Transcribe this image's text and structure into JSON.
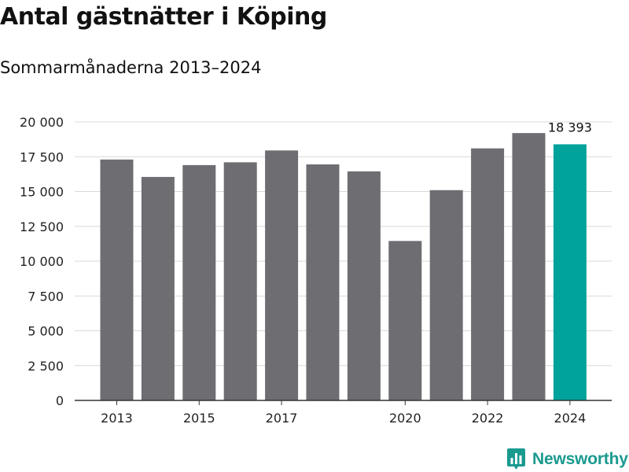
{
  "header": {
    "title": "Antal gästnätter i Köping",
    "subtitle": "Sommarmånaderna 2013–2024"
  },
  "brand": {
    "name": "Newsworthy",
    "logo_icon": "bar-chart-badge-icon",
    "color": "#1a9a8f"
  },
  "colors": {
    "bar": "#6d6d72",
    "highlight": "#00a39b",
    "grid": "#d9d9d9",
    "axis": "#333333"
  },
  "chart_data": {
    "type": "bar",
    "title": "Antal gästnätter i Köping",
    "subtitle": "Sommarmånaderna 2013–2024",
    "categories": [
      "2013",
      "2014",
      "2015",
      "2016",
      "2017",
      "2018",
      "2019",
      "2020",
      "2021",
      "2022",
      "2023",
      "2024"
    ],
    "values": [
      17300,
      16050,
      16900,
      17100,
      17950,
      16950,
      16450,
      11450,
      15100,
      18100,
      19200,
      18393
    ],
    "highlight_index": 11,
    "data_labels": [
      {
        "index": 11,
        "text": "18 393"
      }
    ],
    "x_tick_labels": [
      "2013",
      "",
      "2015",
      "",
      "2017",
      "",
      "",
      "2020",
      "",
      "2022",
      "",
      "2024"
    ],
    "y_ticks": [
      0,
      2500,
      5000,
      7500,
      10000,
      12500,
      15000,
      17500,
      20000
    ],
    "y_tick_labels": [
      "0",
      "2 500",
      "5 000",
      "7 500",
      "10 000",
      "12 500",
      "15 000",
      "17 500",
      "20 000"
    ],
    "ylim": [
      0,
      20000
    ],
    "xlabel": "",
    "ylabel": "",
    "grid": true
  }
}
